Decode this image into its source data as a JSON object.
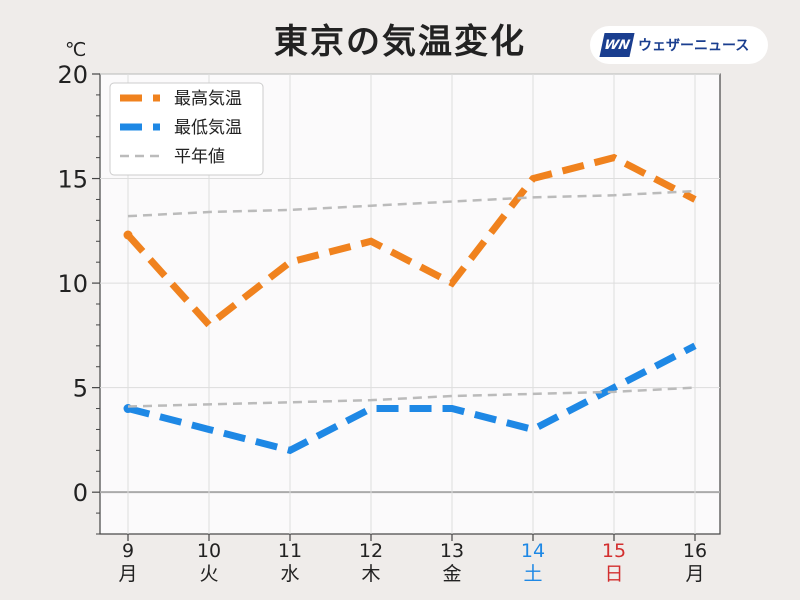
{
  "header": {
    "title": "東京の気温変化",
    "logo_mark": "WN",
    "logo_text": "ウェザーニュース"
  },
  "chart_data": {
    "type": "line",
    "title": "東京の気温変化",
    "ylabel": "℃",
    "xlabel": "",
    "ylim": [
      -2,
      20
    ],
    "yticks": [
      0,
      5,
      10,
      15,
      20
    ],
    "grid": true,
    "legend_position": "top-left",
    "days": [
      "9",
      "10",
      "11",
      "12",
      "13",
      "14",
      "15",
      "16"
    ],
    "weekdays": [
      "月",
      "火",
      "水",
      "木",
      "金",
      "土",
      "日",
      "月"
    ],
    "day_colors": [
      "#222222",
      "#222222",
      "#222222",
      "#222222",
      "#222222",
      "#1e88e5",
      "#d32f2f",
      "#222222"
    ],
    "series": [
      {
        "name": "最高気温",
        "color": "#f0821e",
        "style": "dashed-thick",
        "values": [
          12.3,
          8,
          11,
          12,
          10,
          15,
          16,
          14
        ]
      },
      {
        "name": "最低気温",
        "color": "#1e88e5",
        "style": "dashed-thick",
        "values": [
          4,
          3,
          2,
          4,
          4,
          3,
          5,
          7
        ]
      },
      {
        "name": "平年値",
        "color": "#bbbbbb",
        "style": "dashed-thin",
        "values": [
          13.2,
          13.4,
          13.5,
          13.7,
          13.9,
          14.1,
          14.2,
          14.4
        ]
      },
      {
        "name": "",
        "color": "#bbbbbb",
        "style": "dashed-thin",
        "values": [
          4.1,
          4.2,
          4.3,
          4.4,
          4.6,
          4.7,
          4.8,
          5.0
        ]
      }
    ]
  }
}
